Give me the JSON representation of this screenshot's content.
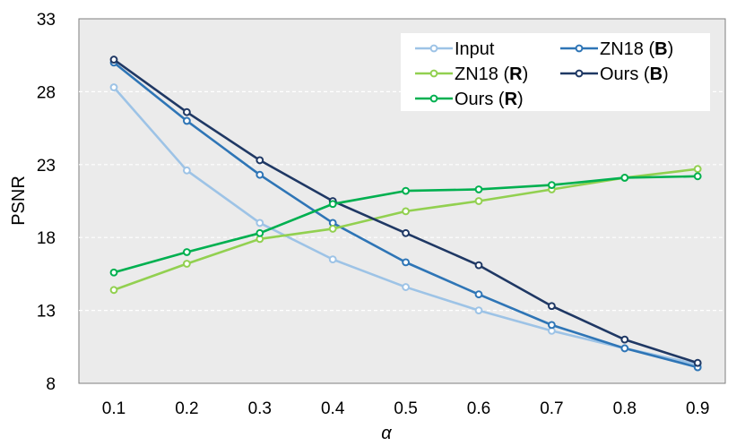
{
  "chart_data": {
    "type": "line",
    "xlabel": "α",
    "ylabel": "PSNR",
    "x": [
      0.1,
      0.2,
      0.3,
      0.4,
      0.5,
      0.6,
      0.7,
      0.8,
      0.9
    ],
    "x_tick_labels": [
      "0.1",
      "0.2",
      "0.3",
      "0.4",
      "0.5",
      "0.6",
      "0.7",
      "0.8",
      "0.9"
    ],
    "ylim": [
      8,
      33
    ],
    "y_ticks": [
      8,
      13,
      18,
      23,
      28,
      33
    ],
    "y_tick_labels": [
      "8",
      "13",
      "18",
      "23",
      "28",
      "33"
    ],
    "grid": "horizontal dashed white",
    "plot_background": "#ebebeb",
    "legend_position": "top-right",
    "series": [
      {
        "name": "Input",
        "legend_main": "Input",
        "legend_bold": "",
        "color": "#9dc3e6",
        "values": [
          28.3,
          22.6,
          19.0,
          16.5,
          14.6,
          13.0,
          11.6,
          10.4,
          9.3
        ]
      },
      {
        "name": "ZN18 (B)",
        "legend_main": "ZN18 (",
        "legend_bold": "B",
        "color": "#2e75b6",
        "values": [
          30.0,
          26.0,
          22.3,
          19.0,
          16.3,
          14.1,
          12.0,
          10.4,
          9.1
        ]
      },
      {
        "name": "ZN18 (R)",
        "legend_main": "ZN18 (",
        "legend_bold": "R",
        "color": "#92d050",
        "values": [
          14.4,
          16.2,
          17.9,
          18.6,
          19.8,
          20.5,
          21.3,
          22.1,
          22.7
        ]
      },
      {
        "name": "Ours (B)",
        "legend_main": "Ours (",
        "legend_bold": "B",
        "color": "#1f3864",
        "values": [
          30.2,
          26.6,
          23.3,
          20.5,
          18.3,
          16.1,
          13.3,
          11.0,
          9.4
        ]
      },
      {
        "name": "Ours (R)",
        "legend_main": "Ours (",
        "legend_bold": "R",
        "color": "#00b050",
        "values": [
          15.6,
          17.0,
          18.3,
          20.3,
          21.2,
          21.3,
          21.6,
          22.1,
          22.2
        ]
      }
    ]
  }
}
